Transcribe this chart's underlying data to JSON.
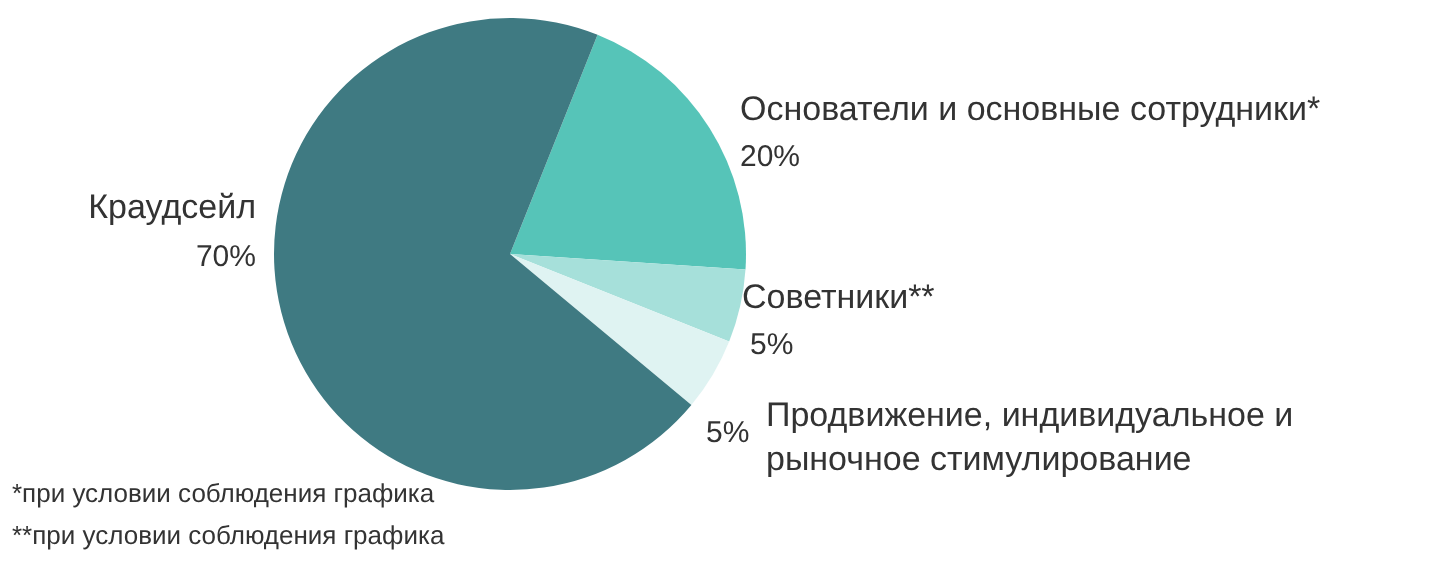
{
  "chart_data": {
    "type": "pie",
    "categories": [
      "Основатели и основные сотрудники*",
      "Советники**",
      "Продвижение, индивидуальное и рыночное стимулирование",
      "Краудсейл"
    ],
    "values": [
      20,
      5,
      5,
      70
    ],
    "colors": [
      "#56c4b8",
      "#a6e0da",
      "#dff3f2",
      "#3f7a82"
    ],
    "value_labels": [
      "20%",
      "5%",
      "5%",
      "70%"
    ],
    "annotations": [
      "*при условии соблюдения графика",
      "**при условии соблюдения графика"
    ]
  }
}
